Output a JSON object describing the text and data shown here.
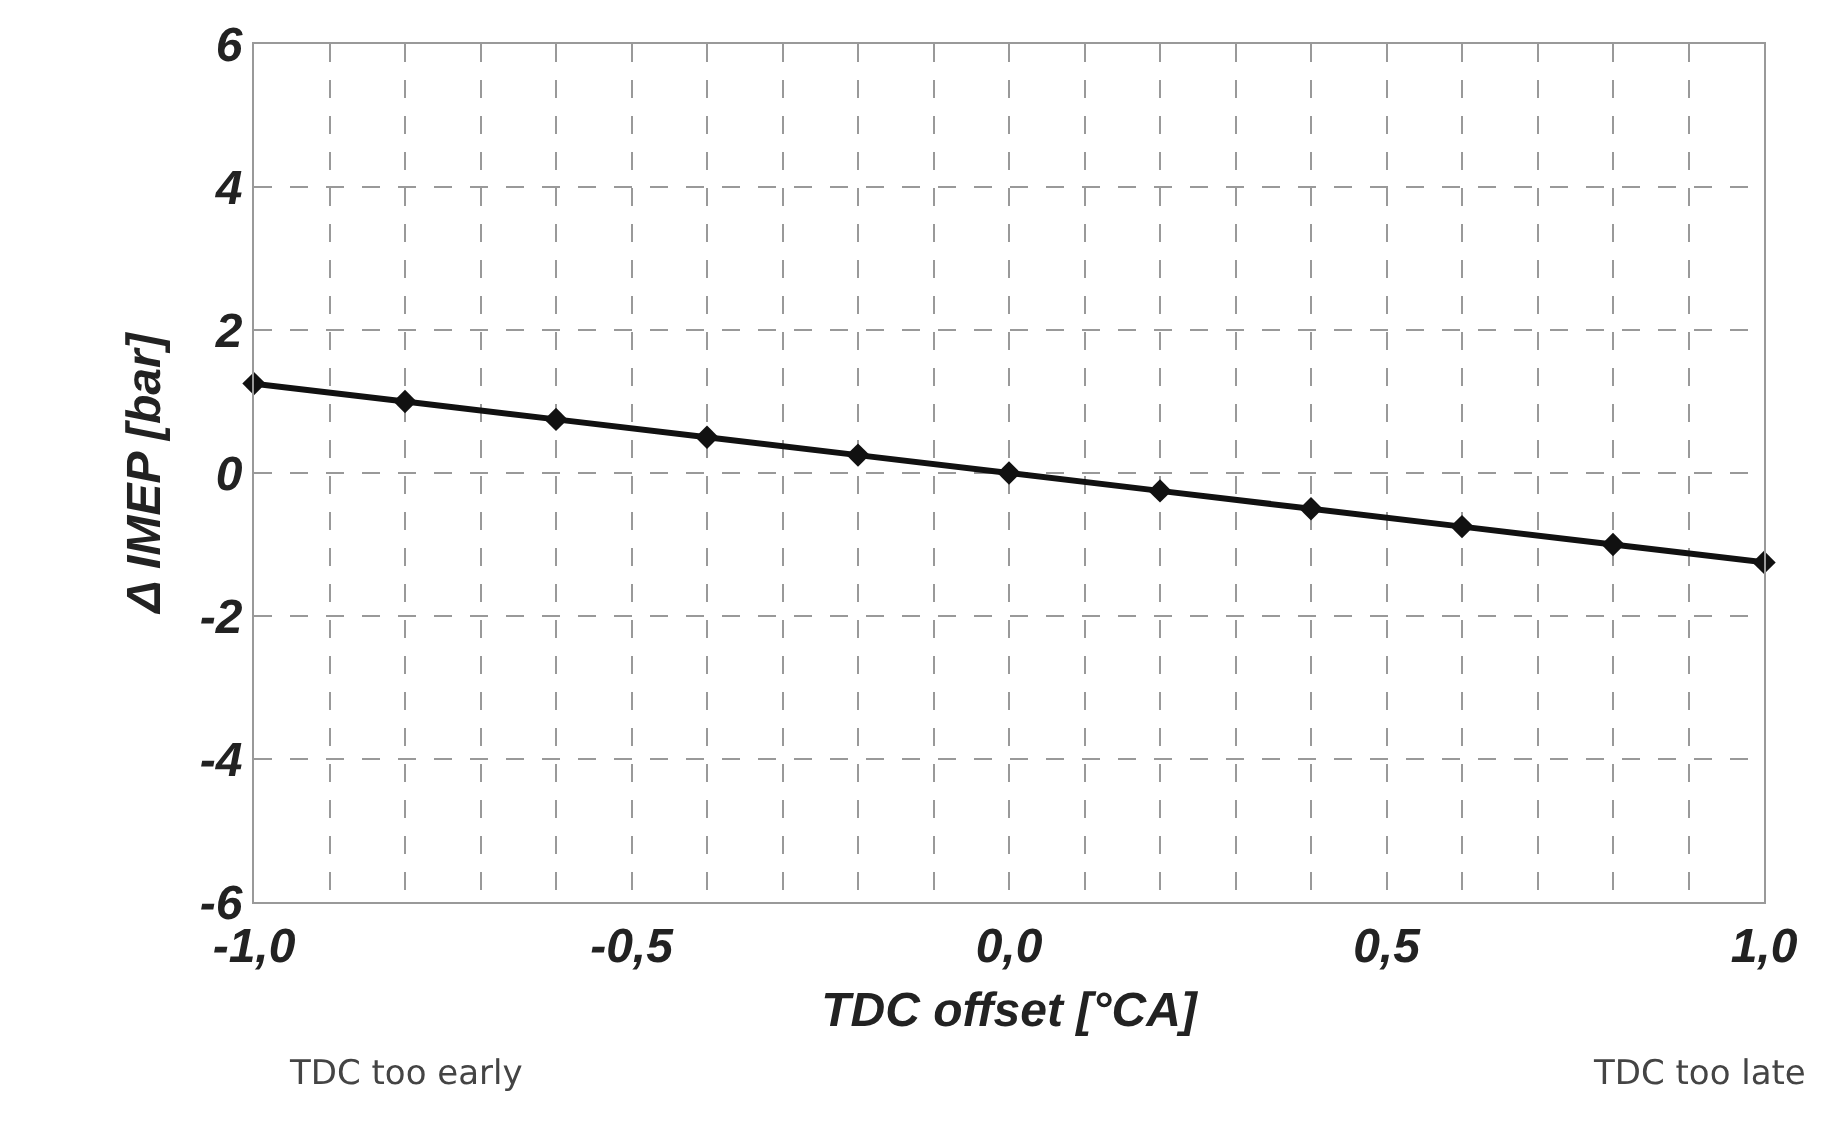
{
  "chart_data": {
    "type": "line",
    "xlabel": "TDC offset [°CA]",
    "ylabel": "Δ IMEP [bar]",
    "x": [
      -1.0,
      -0.8,
      -0.6,
      -0.4,
      -0.2,
      0.0,
      0.2,
      0.4,
      0.6,
      0.8,
      1.0
    ],
    "series": [
      {
        "color": "#111111",
        "values": [
          1.25,
          1.0,
          0.75,
          0.5,
          0.25,
          0.0,
          -0.25,
          -0.5,
          -0.75,
          -1.0,
          -1.25
        ]
      }
    ],
    "xlim": [
      -1.0,
      1.0
    ],
    "xticks": [
      {
        "value": -1.0,
        "label": "-1,0"
      },
      {
        "value": -0.9,
        "label": null
      },
      {
        "value": -0.8,
        "label": null
      },
      {
        "value": -0.7,
        "label": null
      },
      {
        "value": -0.6,
        "label": null
      },
      {
        "value": -0.5,
        "label": "-0,5"
      },
      {
        "value": -0.4,
        "label": null
      },
      {
        "value": -0.3,
        "label": null
      },
      {
        "value": -0.2,
        "label": null
      },
      {
        "value": -0.1,
        "label": null
      },
      {
        "value": 0.0,
        "label": "0,0"
      },
      {
        "value": 0.1,
        "label": null
      },
      {
        "value": 0.2,
        "label": null
      },
      {
        "value": 0.3,
        "label": null
      },
      {
        "value": 0.4,
        "label": null
      },
      {
        "value": 0.5,
        "label": "0,5"
      },
      {
        "value": 0.6,
        "label": null
      },
      {
        "value": 0.7,
        "label": null
      },
      {
        "value": 0.8,
        "label": null
      },
      {
        "value": 0.9,
        "label": null
      },
      {
        "value": 1.0,
        "label": "1,0"
      }
    ],
    "ylim": [
      -6,
      6
    ],
    "yticks": [
      -6,
      -4,
      -2,
      0,
      2,
      4,
      6
    ],
    "annotations": [
      "TDC too early",
      "TDC too late"
    ],
    "grid": true,
    "marker": "diamond",
    "line_style": "solid"
  }
}
